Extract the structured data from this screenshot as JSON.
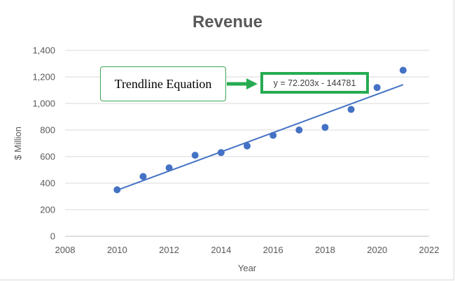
{
  "chart_data": {
    "type": "scatter",
    "title": "Revenue",
    "xlabel": "Year",
    "ylabel": "$ Million",
    "xlim": [
      2008,
      2022
    ],
    "ylim": [
      0,
      1400
    ],
    "x_ticks": [
      "2008",
      "2010",
      "2012",
      "2014",
      "2016",
      "2018",
      "2020",
      "2022"
    ],
    "y_ticks": [
      "0",
      "200",
      "400",
      "600",
      "800",
      "1,000",
      "1,200",
      "1,400"
    ],
    "grid": "horizontal",
    "series": [
      {
        "x": [
          2010,
          2011,
          2012,
          2013,
          2014,
          2015,
          2016,
          2017,
          2018,
          2019,
          2020,
          2021
        ],
        "y": [
          350,
          450,
          515,
          610,
          630,
          680,
          760,
          800,
          820,
          955,
          1120,
          1250
        ]
      }
    ],
    "trendline": {
      "type": "linear",
      "slope": 72.203,
      "intercept": -144781,
      "x_range": [
        2010,
        2021
      ]
    },
    "annotations": {
      "callout_label": "Trendline Equation",
      "equation": "y = 72.203x - 144781"
    },
    "colors": {
      "marker": "#4472c4",
      "trendline": "#4472c4",
      "gridline": "#d9d9d9",
      "annotation_border": "#27ab52",
      "arrow": "#27ab52"
    }
  }
}
